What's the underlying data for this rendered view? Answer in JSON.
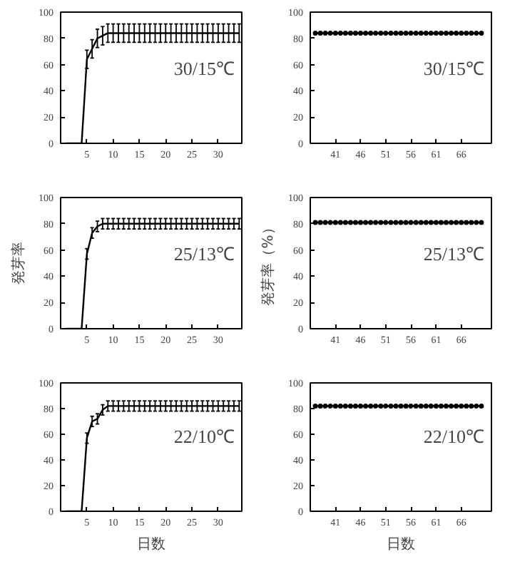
{
  "chart_data": [
    {
      "type": "line",
      "x": [
        1,
        2,
        3,
        4,
        5,
        6,
        7,
        8,
        9,
        10,
        11,
        12,
        13,
        14,
        15,
        16,
        17,
        18,
        19,
        20,
        21,
        22,
        23,
        24,
        25,
        26,
        27,
        28,
        29,
        30,
        31,
        32,
        33,
        34
      ],
      "values": [
        0,
        0,
        0,
        0,
        64,
        72,
        80,
        82,
        84,
        84,
        84,
        84,
        84,
        84,
        84,
        84,
        84,
        84,
        84,
        84,
        84,
        84,
        84,
        84,
        84,
        84,
        84,
        84,
        84,
        84,
        84,
        84,
        84,
        84
      ],
      "errors": [
        null,
        null,
        null,
        null,
        7,
        7,
        7,
        7,
        7,
        7,
        7,
        7,
        7,
        7,
        7,
        7,
        7,
        7,
        7,
        7,
        7,
        7,
        7,
        7,
        7,
        7,
        7,
        7,
        7,
        7,
        7,
        7,
        7,
        7
      ],
      "color": "#000000",
      "xlim": [
        0,
        34.5
      ],
      "xticks": [
        5,
        10,
        15,
        20,
        25,
        30
      ],
      "ylim": [
        0,
        100
      ],
      "yticks": [
        0,
        20,
        40,
        60,
        80,
        100
      ],
      "annotations": [
        "30/15℃"
      ]
    },
    {
      "type": "line",
      "x": [
        37,
        38,
        39,
        40,
        41,
        42,
        43,
        44,
        45,
        46,
        47,
        48,
        49,
        50,
        51,
        52,
        53,
        54,
        55,
        56,
        57,
        58,
        59,
        60,
        61,
        62,
        63,
        64,
        65,
        66,
        67,
        68,
        69,
        70
      ],
      "values": [
        84,
        84,
        84,
        84,
        84,
        84,
        84,
        84,
        84,
        84,
        84,
        84,
        84,
        84,
        84,
        84,
        84,
        84,
        84,
        84,
        84,
        84,
        84,
        84,
        84,
        84,
        84,
        84,
        84,
        84,
        84,
        84,
        84,
        84
      ],
      "color": "#000000",
      "marker": "circle",
      "xlim": [
        36,
        72
      ],
      "xticks": [
        41,
        46,
        51,
        56,
        61,
        66
      ],
      "ylim": [
        0,
        100
      ],
      "yticks": [
        0,
        20,
        40,
        60,
        80,
        100
      ],
      "annotations": [
        "30/15℃"
      ]
    },
    {
      "type": "line",
      "x": [
        1,
        2,
        3,
        4,
        5,
        6,
        7,
        8,
        9,
        10,
        11,
        12,
        13,
        14,
        15,
        16,
        17,
        18,
        19,
        20,
        21,
        22,
        23,
        24,
        25,
        26,
        27,
        28,
        29,
        30,
        31,
        32,
        33,
        34
      ],
      "values": [
        0,
        0,
        0,
        0,
        57,
        73,
        78,
        80,
        80,
        80,
        80,
        80,
        80,
        80,
        80,
        80,
        80,
        80,
        80,
        80,
        80,
        80,
        80,
        80,
        80,
        80,
        80,
        80,
        80,
        80,
        80,
        80,
        80,
        80
      ],
      "errors": [
        null,
        null,
        null,
        null,
        4,
        4,
        4,
        4,
        4,
        4,
        4,
        4,
        4,
        4,
        4,
        4,
        4,
        4,
        4,
        4,
        4,
        4,
        4,
        4,
        4,
        4,
        4,
        4,
        4,
        4,
        4,
        4,
        4,
        4
      ],
      "color": "#000000",
      "xlim": [
        0,
        34.5
      ],
      "xticks": [
        5,
        10,
        15,
        20,
        25,
        30
      ],
      "ylim": [
        0,
        100
      ],
      "yticks": [
        0,
        20,
        40,
        60,
        80,
        100
      ],
      "ylabel": "発芽率",
      "annotations": [
        "25/13℃"
      ]
    },
    {
      "type": "line",
      "x": [
        37,
        38,
        39,
        40,
        41,
        42,
        43,
        44,
        45,
        46,
        47,
        48,
        49,
        50,
        51,
        52,
        53,
        54,
        55,
        56,
        57,
        58,
        59,
        60,
        61,
        62,
        63,
        64,
        65,
        66,
        67,
        68,
        69,
        70
      ],
      "values": [
        81,
        81,
        81,
        81,
        81,
        81,
        81,
        81,
        81,
        81,
        81,
        81,
        81,
        81,
        81,
        81,
        81,
        81,
        81,
        81,
        81,
        81,
        81,
        81,
        81,
        81,
        81,
        81,
        81,
        81,
        81,
        81,
        81,
        81
      ],
      "color": "#000000",
      "marker": "circle",
      "xlim": [
        36,
        72
      ],
      "xticks": [
        41,
        46,
        51,
        56,
        61,
        66
      ],
      "ylim": [
        0,
        100
      ],
      "yticks": [
        0,
        20,
        40,
        60,
        80,
        100
      ],
      "ylabel": "発芽率（%）",
      "annotations": [
        "25/13℃"
      ]
    },
    {
      "type": "line",
      "x": [
        1,
        2,
        3,
        4,
        5,
        6,
        7,
        8,
        9,
        10,
        11,
        12,
        13,
        14,
        15,
        16,
        17,
        18,
        19,
        20,
        21,
        22,
        23,
        24,
        25,
        26,
        27,
        28,
        29,
        30,
        31,
        32,
        33,
        34
      ],
      "values": [
        0,
        0,
        0,
        0,
        57,
        70,
        72,
        79,
        82,
        82,
        82,
        82,
        82,
        82,
        82,
        82,
        82,
        82,
        82,
        82,
        82,
        82,
        82,
        82,
        82,
        82,
        82,
        82,
        82,
        82,
        82,
        82,
        82,
        82
      ],
      "errors": [
        null,
        null,
        null,
        null,
        4,
        4,
        4,
        4,
        4,
        4,
        4,
        4,
        4,
        4,
        4,
        4,
        4,
        4,
        4,
        4,
        4,
        4,
        4,
        4,
        4,
        4,
        4,
        4,
        4,
        4,
        4,
        4,
        4,
        4
      ],
      "color": "#000000",
      "xlim": [
        0,
        34.5
      ],
      "xticks": [
        5,
        10,
        15,
        20,
        25,
        30
      ],
      "ylim": [
        0,
        100
      ],
      "yticks": [
        0,
        20,
        40,
        60,
        80,
        100
      ],
      "xlabel": "日数",
      "annotations": [
        "22/10℃"
      ]
    },
    {
      "type": "line",
      "x": [
        37,
        38,
        39,
        40,
        41,
        42,
        43,
        44,
        45,
        46,
        47,
        48,
        49,
        50,
        51,
        52,
        53,
        54,
        55,
        56,
        57,
        58,
        59,
        60,
        61,
        62,
        63,
        64,
        65,
        66,
        67,
        68,
        69,
        70
      ],
      "values": [
        82,
        82,
        82,
        82,
        82,
        82,
        82,
        82,
        82,
        82,
        82,
        82,
        82,
        82,
        82,
        82,
        82,
        82,
        82,
        82,
        82,
        82,
        82,
        82,
        82,
        82,
        82,
        82,
        82,
        82,
        82,
        82,
        82,
        82
      ],
      "color": "#000000",
      "marker": "circle",
      "xlim": [
        36,
        72
      ],
      "xticks": [
        41,
        46,
        51,
        56,
        61,
        66
      ],
      "ylim": [
        0,
        100
      ],
      "yticks": [
        0,
        20,
        40,
        60,
        80,
        100
      ],
      "xlabel": "日数",
      "annotations": [
        "22/10℃"
      ]
    }
  ]
}
